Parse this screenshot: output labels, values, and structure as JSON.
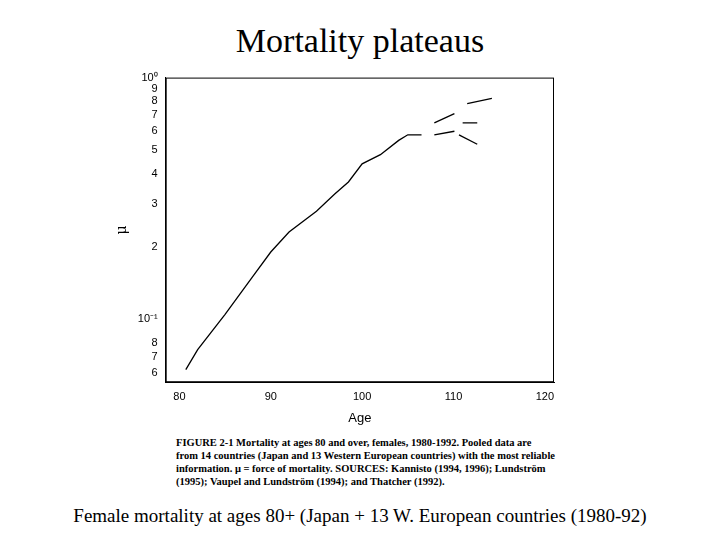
{
  "chart_data": {
    "type": "line",
    "title": "Mortality plateaus",
    "caption": "FIGURE 2-1 Mortality at ages 80 and over, females, 1980-1992. Pooled data are from 14 countries (Japan and 13 Western European countries) with the most reliable information. μ = force of mortality. SOURCES: Kannisto (1994, 1996); Lundström (1995); Vaupel and Lundström (1994); and Thatcher (1992).",
    "footer": "Female mortality at ages 80+ (Japan + 13 W. European countries (1980-92)",
    "x_label": "Age",
    "y_label": "μ",
    "log": "y",
    "grid": false,
    "xlim": [
      78.5,
      121
    ],
    "xticks": [
      80,
      90,
      100,
      110,
      120
    ],
    "ylim": [
      0.055,
      1
    ],
    "yticks": [
      {
        "value": 0.06,
        "label": "6"
      },
      {
        "value": 0.07,
        "label": "7"
      },
      {
        "value": 0.08,
        "label": "8"
      },
      {
        "value": 0.1,
        "label": "10⁻¹"
      },
      {
        "value": 0.2,
        "label": "2"
      },
      {
        "value": 0.3,
        "label": "3"
      },
      {
        "value": 0.4,
        "label": "4"
      },
      {
        "value": 0.5,
        "label": "5"
      },
      {
        "value": 0.6,
        "label": "6"
      },
      {
        "value": 0.7,
        "label": "7"
      },
      {
        "value": 0.8,
        "label": "8"
      },
      {
        "value": 0.9,
        "label": "9"
      },
      {
        "value": 1,
        "label": "10⁰"
      }
    ],
    "series": [
      {
        "color": "#000000",
        "x": [
          80.7,
          82,
          85,
          88,
          90,
          92,
          95,
          97,
          98.5,
          100,
          102,
          104,
          105,
          106.5
        ],
        "values": [
          0.062,
          0.075,
          0.105,
          0.15,
          0.19,
          0.23,
          0.28,
          0.33,
          0.37,
          0.44,
          0.48,
          0.55,
          0.58,
          0.58
        ]
      },
      {
        "color": "#000000",
        "x": [
          107.9,
          110.1
        ],
        "values": [
          0.58,
          0.6
        ]
      },
      {
        "color": "#000000",
        "x": [
          107.9,
          110.1
        ],
        "values": [
          0.65,
          0.71
        ]
      },
      {
        "color": "#000000",
        "x": [
          110.6,
          112.6
        ],
        "values": [
          0.58,
          0.53
        ]
      },
      {
        "color": "#000000",
        "x": [
          111.0,
          112.6
        ],
        "values": [
          0.65,
          0.65
        ]
      },
      {
        "color": "#000000",
        "x": [
          111.5,
          114.2
        ],
        "values": [
          0.78,
          0.82
        ]
      }
    ]
  }
}
